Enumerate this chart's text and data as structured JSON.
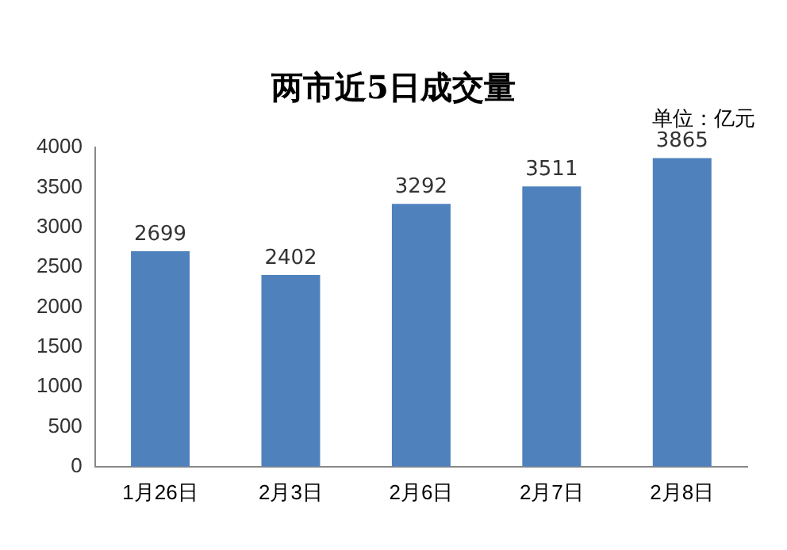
{
  "chart_data": {
    "type": "bar",
    "title": "两市近5日成交量",
    "annotations": [
      "单位：亿元"
    ],
    "categories": [
      "1月26日",
      "2月3日",
      "2月6日",
      "2月7日",
      "2月8日"
    ],
    "values": [
      2699,
      2402,
      3292,
      3511,
      3865
    ],
    "color": "#4f81bd",
    "ylim": [
      0,
      4000
    ],
    "yticks": [
      0,
      500,
      1000,
      1500,
      2000,
      2500,
      3000,
      3500,
      4000
    ],
    "grid": false,
    "data_labels": true,
    "legend": false
  }
}
